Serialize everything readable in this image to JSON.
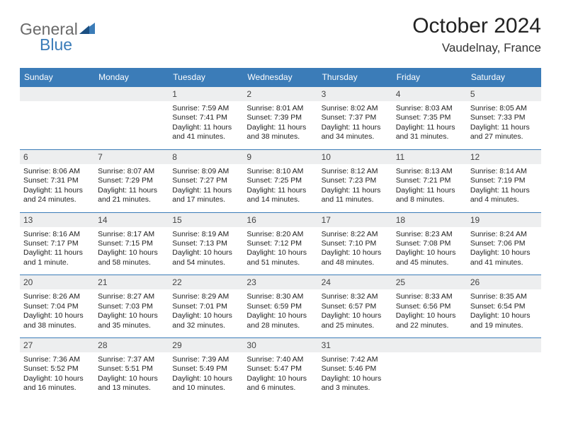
{
  "logo": {
    "text1": "General",
    "text2": "Blue"
  },
  "title": "October 2024",
  "location": "Vaudelnay, France",
  "dayHeaders": [
    "Sunday",
    "Monday",
    "Tuesday",
    "Wednesday",
    "Thursday",
    "Friday",
    "Saturday"
  ],
  "colors": {
    "headerBg": "#3b7cb8",
    "headerText": "#ffffff",
    "dayNumBg": "#edeeef",
    "rowBorder": "#3b7cb8",
    "logoGray": "#6a6a6a",
    "logoBlue": "#3b7cb8"
  },
  "weeks": [
    [
      null,
      null,
      {
        "n": "1",
        "sr": "7:59 AM",
        "ss": "7:41 PM",
        "dl": "11 hours and 41 minutes."
      },
      {
        "n": "2",
        "sr": "8:01 AM",
        "ss": "7:39 PM",
        "dl": "11 hours and 38 minutes."
      },
      {
        "n": "3",
        "sr": "8:02 AM",
        "ss": "7:37 PM",
        "dl": "11 hours and 34 minutes."
      },
      {
        "n": "4",
        "sr": "8:03 AM",
        "ss": "7:35 PM",
        "dl": "11 hours and 31 minutes."
      },
      {
        "n": "5",
        "sr": "8:05 AM",
        "ss": "7:33 PM",
        "dl": "11 hours and 27 minutes."
      }
    ],
    [
      {
        "n": "6",
        "sr": "8:06 AM",
        "ss": "7:31 PM",
        "dl": "11 hours and 24 minutes."
      },
      {
        "n": "7",
        "sr": "8:07 AM",
        "ss": "7:29 PM",
        "dl": "11 hours and 21 minutes."
      },
      {
        "n": "8",
        "sr": "8:09 AM",
        "ss": "7:27 PM",
        "dl": "11 hours and 17 minutes."
      },
      {
        "n": "9",
        "sr": "8:10 AM",
        "ss": "7:25 PM",
        "dl": "11 hours and 14 minutes."
      },
      {
        "n": "10",
        "sr": "8:12 AM",
        "ss": "7:23 PM",
        "dl": "11 hours and 11 minutes."
      },
      {
        "n": "11",
        "sr": "8:13 AM",
        "ss": "7:21 PM",
        "dl": "11 hours and 8 minutes."
      },
      {
        "n": "12",
        "sr": "8:14 AM",
        "ss": "7:19 PM",
        "dl": "11 hours and 4 minutes."
      }
    ],
    [
      {
        "n": "13",
        "sr": "8:16 AM",
        "ss": "7:17 PM",
        "dl": "11 hours and 1 minute."
      },
      {
        "n": "14",
        "sr": "8:17 AM",
        "ss": "7:15 PM",
        "dl": "10 hours and 58 minutes."
      },
      {
        "n": "15",
        "sr": "8:19 AM",
        "ss": "7:13 PM",
        "dl": "10 hours and 54 minutes."
      },
      {
        "n": "16",
        "sr": "8:20 AM",
        "ss": "7:12 PM",
        "dl": "10 hours and 51 minutes."
      },
      {
        "n": "17",
        "sr": "8:22 AM",
        "ss": "7:10 PM",
        "dl": "10 hours and 48 minutes."
      },
      {
        "n": "18",
        "sr": "8:23 AM",
        "ss": "7:08 PM",
        "dl": "10 hours and 45 minutes."
      },
      {
        "n": "19",
        "sr": "8:24 AM",
        "ss": "7:06 PM",
        "dl": "10 hours and 41 minutes."
      }
    ],
    [
      {
        "n": "20",
        "sr": "8:26 AM",
        "ss": "7:04 PM",
        "dl": "10 hours and 38 minutes."
      },
      {
        "n": "21",
        "sr": "8:27 AM",
        "ss": "7:03 PM",
        "dl": "10 hours and 35 minutes."
      },
      {
        "n": "22",
        "sr": "8:29 AM",
        "ss": "7:01 PM",
        "dl": "10 hours and 32 minutes."
      },
      {
        "n": "23",
        "sr": "8:30 AM",
        "ss": "6:59 PM",
        "dl": "10 hours and 28 minutes."
      },
      {
        "n": "24",
        "sr": "8:32 AM",
        "ss": "6:57 PM",
        "dl": "10 hours and 25 minutes."
      },
      {
        "n": "25",
        "sr": "8:33 AM",
        "ss": "6:56 PM",
        "dl": "10 hours and 22 minutes."
      },
      {
        "n": "26",
        "sr": "8:35 AM",
        "ss": "6:54 PM",
        "dl": "10 hours and 19 minutes."
      }
    ],
    [
      {
        "n": "27",
        "sr": "7:36 AM",
        "ss": "5:52 PM",
        "dl": "10 hours and 16 minutes."
      },
      {
        "n": "28",
        "sr": "7:37 AM",
        "ss": "5:51 PM",
        "dl": "10 hours and 13 minutes."
      },
      {
        "n": "29",
        "sr": "7:39 AM",
        "ss": "5:49 PM",
        "dl": "10 hours and 10 minutes."
      },
      {
        "n": "30",
        "sr": "7:40 AM",
        "ss": "5:47 PM",
        "dl": "10 hours and 6 minutes."
      },
      {
        "n": "31",
        "sr": "7:42 AM",
        "ss": "5:46 PM",
        "dl": "10 hours and 3 minutes."
      },
      null,
      null
    ]
  ],
  "labels": {
    "sunrise": "Sunrise: ",
    "sunset": "Sunset: ",
    "daylight": "Daylight: "
  }
}
